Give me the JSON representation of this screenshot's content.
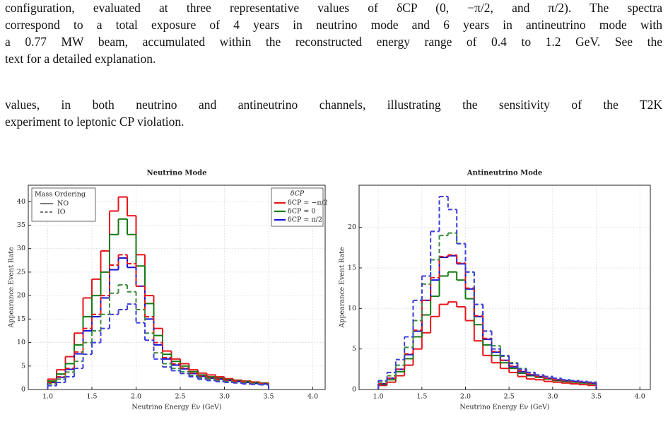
{
  "text": {
    "caption_lines": [
      "configuration, evaluated at three representative values of δCP (0, −π/2, and π/2). The spectra",
      "correspond to a total exposure of 4 years in neutrino mode and 6 years in antineutrino mode with",
      "a 0.77 MW beam, accumulated within the reconstructed energy range of 0.4 to 1.2 GeV. See the",
      "text for a detailed explanation."
    ],
    "body_lines": [
      "values, in both neutrino and antineutrino channels, illustrating the sensitivity of the T2K",
      "experiment to leptonic CP violation."
    ]
  },
  "chart_data": [
    {
      "type": "histogram",
      "title": "Neutrino Mode",
      "xlabel": "Neutrino Energy Eν (GeV)",
      "ylabel": "Appearance Event Rate",
      "bins": [
        1.0,
        1.1,
        1.2,
        1.3,
        1.4,
        1.5,
        1.6,
        1.7,
        1.8,
        1.9,
        2.0,
        2.1,
        2.2,
        2.3,
        2.4,
        2.5,
        2.6,
        2.7,
        2.8,
        2.9,
        3.0,
        3.1,
        3.2,
        3.3,
        3.4,
        3.5
      ],
      "xlim": [
        0.78,
        4.14
      ],
      "ylim": [
        0,
        43.5
      ],
      "xticks": [
        {
          "value": 1,
          "label": "1.0"
        },
        1.5,
        {
          "value": 2,
          "label": "2.0"
        },
        2.5,
        {
          "value": 3,
          "label": "3.0"
        },
        3.5,
        {
          "value": 4,
          "label": "4.0"
        }
      ],
      "yticks": [
        0,
        5,
        10,
        15,
        20,
        25,
        30,
        35,
        40
      ],
      "grid": true,
      "legend": "upper right",
      "legend_title": "δCP",
      "style_legend": {
        "corner": "upper left",
        "title": "Mass Ordering",
        "entries": [
          {
            "label": "NO",
            "dashed": false
          },
          {
            "label": "IO",
            "dashed": true
          }
        ]
      },
      "series": [
        {
          "name": "δCP = −π/2",
          "ordering": 0,
          "color": "#e8141a",
          "values": [
            2.2,
            4.2,
            7.0,
            12.0,
            19.5,
            23.5,
            29.5,
            38.0,
            41.0,
            37.0,
            28.7,
            20.0,
            13.0,
            8.2,
            6.5,
            5.5,
            4.2,
            3.5,
            3.1,
            2.7,
            2.3,
            2.0,
            1.8,
            1.6,
            1.4
          ]
        },
        {
          "name": "δCP = 0",
          "ordering": 0,
          "color": "#147a14",
          "values": [
            1.8,
            3.3,
            5.5,
            9.5,
            15.5,
            20.0,
            25.0,
            33.0,
            36.3,
            33.0,
            26.3,
            18.3,
            11.5,
            7.5,
            6.0,
            5.0,
            3.8,
            3.1,
            2.7,
            2.4,
            2.1,
            1.9,
            1.7,
            1.5,
            1.3
          ]
        },
        {
          "name": "δCP = π/2",
          "ordering": 0,
          "color": "#1414d8",
          "values": [
            1.5,
            2.6,
            4.3,
            7.6,
            12.5,
            15.5,
            19.5,
            25.5,
            28.0,
            26.0,
            22.0,
            15.0,
            9.5,
            6.5,
            5.2,
            4.4,
            3.4,
            2.8,
            2.4,
            2.2,
            1.9,
            1.7,
            1.5,
            1.3,
            1.2
          ]
        },
        {
          "name": "δCP = −π/2",
          "ordering": 1,
          "color": "#e8141a",
          "values": [
            1.5,
            2.7,
            4.5,
            8.0,
            13.0,
            16.0,
            20.0,
            26.5,
            28.7,
            26.8,
            22.0,
            15.5,
            10.0,
            6.8,
            5.5,
            4.6,
            3.5,
            2.9,
            2.5,
            2.2,
            2.0,
            1.8,
            1.6,
            1.4,
            1.2
          ]
        },
        {
          "name": "δCP = 0",
          "ordering": 1,
          "color": "#3c8c3c",
          "values": [
            1.2,
            2.2,
            3.7,
            6.0,
            10.0,
            12.5,
            16.0,
            20.5,
            22.3,
            20.8,
            17.0,
            12.0,
            7.8,
            5.5,
            4.5,
            3.8,
            3.0,
            2.5,
            2.2,
            1.9,
            1.7,
            1.5,
            1.4,
            1.2,
            1.1
          ]
        },
        {
          "name": "δCP = π/2",
          "ordering": 1,
          "color": "#3c3ce0",
          "values": [
            0.8,
            1.5,
            2.7,
            4.5,
            7.5,
            10.0,
            13.0,
            16.0,
            17.0,
            18.2,
            14.2,
            10.5,
            6.5,
            4.8,
            4.0,
            3.4,
            2.7,
            2.2,
            1.9,
            1.7,
            1.5,
            1.4,
            1.2,
            1.1,
            1.0
          ]
        }
      ]
    },
    {
      "type": "histogram",
      "title": "Antineutrino Mode",
      "xlabel": "Neutrino Energy Eν (GeV)",
      "ylabel": "Appearance Event Rate",
      "bins": [
        1.0,
        1.1,
        1.2,
        1.3,
        1.4,
        1.5,
        1.6,
        1.7,
        1.8,
        1.9,
        2.0,
        2.1,
        2.2,
        2.3,
        2.4,
        2.5,
        2.6,
        2.7,
        2.8,
        2.9,
        3.0,
        3.1,
        3.2,
        3.3,
        3.4,
        3.5
      ],
      "xlim": [
        0.78,
        4.12
      ],
      "ylim": [
        0,
        25.2
      ],
      "xticks": [
        {
          "value": 1,
          "label": "1.0"
        },
        1.5,
        {
          "value": 2,
          "label": "2.0"
        },
        2.5,
        {
          "value": 3,
          "label": "3.0"
        },
        3.5,
        {
          "value": 4,
          "label": "4.0"
        }
      ],
      "yticks": [
        0,
        5,
        10,
        15,
        20
      ],
      "grid": true,
      "series": [
        {
          "ordering": 0,
          "color": "#e8141a",
          "values": [
            0.5,
            0.9,
            1.7,
            3.0,
            5.0,
            7.0,
            9.0,
            10.5,
            10.8,
            10.2,
            8.5,
            6.0,
            4.2,
            3.3,
            2.6,
            2.1,
            1.6,
            1.3,
            1.2,
            1.0,
            0.9,
            0.8,
            0.7,
            0.6,
            0.5
          ]
        },
        {
          "ordering": 0,
          "color": "#147a14",
          "values": [
            0.6,
            1.2,
            2.2,
            3.8,
            6.5,
            9.2,
            11.5,
            14.0,
            14.5,
            13.5,
            11.2,
            8.0,
            5.5,
            4.2,
            3.3,
            2.6,
            2.0,
            1.7,
            1.5,
            1.3,
            1.1,
            1.0,
            0.9,
            0.8,
            0.7
          ]
        },
        {
          "ordering": 0,
          "color": "#1414d8",
          "values": [
            0.7,
            1.4,
            2.5,
            4.3,
            7.2,
            11.0,
            13.5,
            16.3,
            16.5,
            15.5,
            12.4,
            9.0,
            6.2,
            4.6,
            3.6,
            2.8,
            2.2,
            1.8,
            1.6,
            1.4,
            1.2,
            1.1,
            1.0,
            0.9,
            0.8
          ]
        },
        {
          "ordering": 1,
          "color": "#e8141a",
          "values": [
            0.7,
            1.4,
            2.5,
            4.4,
            7.3,
            11.0,
            13.8,
            16.4,
            16.6,
            15.6,
            12.5,
            9.1,
            6.3,
            4.7,
            3.6,
            2.9,
            2.3,
            1.9,
            1.6,
            1.4,
            1.2,
            1.1,
            1.0,
            0.9,
            0.8
          ]
        },
        {
          "ordering": 1,
          "color": "#3c8c3c",
          "values": [
            0.9,
            1.7,
            3.0,
            5.2,
            8.5,
            13.0,
            16.0,
            19.0,
            19.3,
            18.0,
            14.5,
            10.5,
            7.2,
            5.4,
            4.1,
            3.3,
            2.6,
            2.1,
            1.8,
            1.6,
            1.4,
            1.2,
            1.1,
            1.0,
            0.9
          ]
        },
        {
          "ordering": 1,
          "color": "#3c3ce0",
          "values": [
            1.1,
            2.1,
            3.7,
            6.5,
            11.0,
            14.0,
            19.5,
            23.8,
            22.2,
            18.0,
            14.5,
            10.5,
            7.2,
            5.0,
            4.2,
            3.2,
            2.5,
            2.1,
            1.8,
            1.6,
            1.4,
            1.2,
            1.1,
            1.0,
            0.9
          ]
        }
      ]
    }
  ]
}
